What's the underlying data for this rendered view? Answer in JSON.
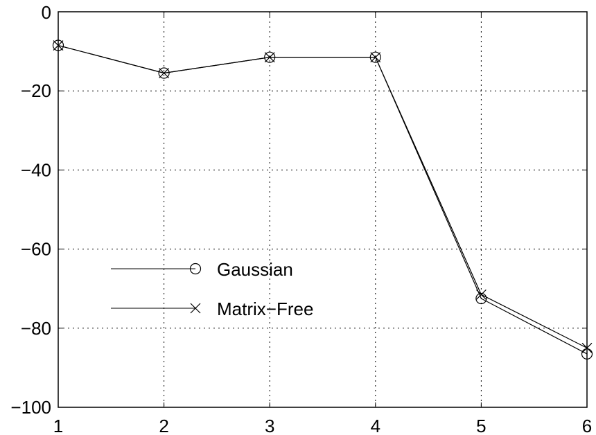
{
  "chart_data": {
    "type": "line",
    "title": "",
    "xlabel": "",
    "ylabel": "",
    "x": [
      1,
      2,
      3,
      4,
      5,
      6
    ],
    "xlim": [
      1,
      6
    ],
    "ylim": [
      -100,
      0
    ],
    "xticks": [
      1,
      2,
      3,
      4,
      5,
      6
    ],
    "yticks": [
      0,
      -20,
      -40,
      -60,
      -80,
      -100
    ],
    "xtick_labels": [
      "1",
      "2",
      "3",
      "4",
      "5",
      "6"
    ],
    "ytick_labels": [
      "0",
      "−20",
      "−40",
      "−60",
      "−80",
      "−100"
    ],
    "grid": true,
    "legend_position": "center-left",
    "series": [
      {
        "name": "Gaussian",
        "marker": "circle",
        "color": "#000000",
        "values": [
          -8.5,
          -15.5,
          -11.5,
          -11.5,
          -72.5,
          -86.5
        ]
      },
      {
        "name": "Matrix−Free",
        "marker": "x",
        "color": "#000000",
        "values": [
          -8.5,
          -15.5,
          -11.5,
          -11.5,
          -71.5,
          -85.0
        ]
      }
    ]
  }
}
